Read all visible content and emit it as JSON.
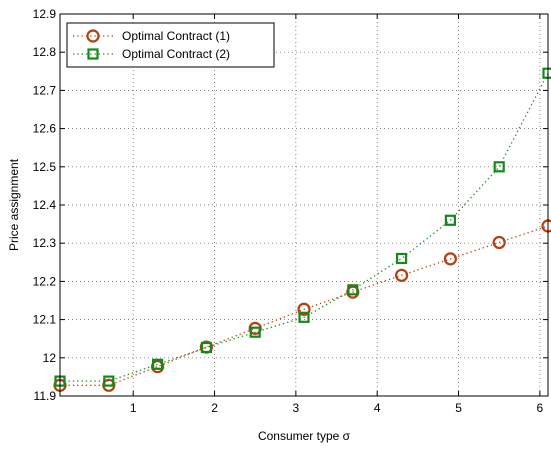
{
  "chart_data": {
    "type": "line",
    "xlabel": "Consumer type σ",
    "ylabel": "Price assignment",
    "xlim": [
      0.1,
      6.1
    ],
    "ylim": [
      11.9,
      12.9
    ],
    "xticks": [
      "1",
      "2",
      "3",
      "4",
      "5",
      "6"
    ],
    "yticks": [
      "11.9",
      "12",
      "12.1",
      "12.2",
      "12.3",
      "12.4",
      "12.5",
      "12.6",
      "12.7",
      "12.8",
      "12.9"
    ],
    "grid": true,
    "legend_position": "top-left",
    "x": [
      0.1,
      0.7,
      1.3,
      1.9,
      2.5,
      3.1,
      3.7,
      4.3,
      4.9,
      5.5,
      6.1
    ],
    "series": [
      {
        "name": "Optimal Contract (1)",
        "marker": "circle",
        "color": "#b5400e",
        "values": [
          11.928,
          11.928,
          11.977,
          12.028,
          12.077,
          12.127,
          12.172,
          12.216,
          12.259,
          12.302,
          12.345
        ]
      },
      {
        "name": "Optimal Contract (2)",
        "marker": "square",
        "color": "#13891b",
        "values": [
          11.939,
          11.939,
          11.983,
          12.027,
          12.067,
          12.106,
          12.178,
          12.26,
          12.36,
          12.5,
          12.745
        ]
      }
    ]
  }
}
